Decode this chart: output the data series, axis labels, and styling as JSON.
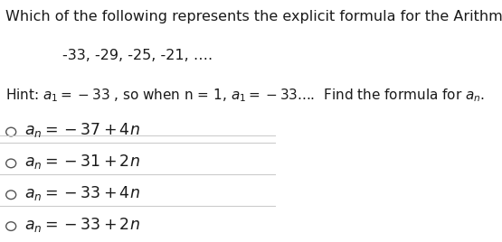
{
  "title": "Which of the following represents the explicit formula for the Arithmetic Sequence?",
  "sequence": "-33, -29, -25, -21, ….",
  "hint": "Hint: $a_1 = -33$ , so when n = 1, $a_1 = -33$....  Find the formula for $a_n$.",
  "options": [
    "$a_n = -37 + 4n$",
    "$a_n = -31 + 2n$",
    "$a_n = -33 + 4n$",
    "$a_n = -33 + 2n$"
  ],
  "bg_color": "#ffffff",
  "text_color": "#1a1a1a",
  "line_color": "#cccccc",
  "circle_color": "#555555",
  "title_fontsize": 11.5,
  "hint_fontsize": 11.0,
  "option_fontsize": 12.5,
  "sequence_fontsize": 11.5
}
